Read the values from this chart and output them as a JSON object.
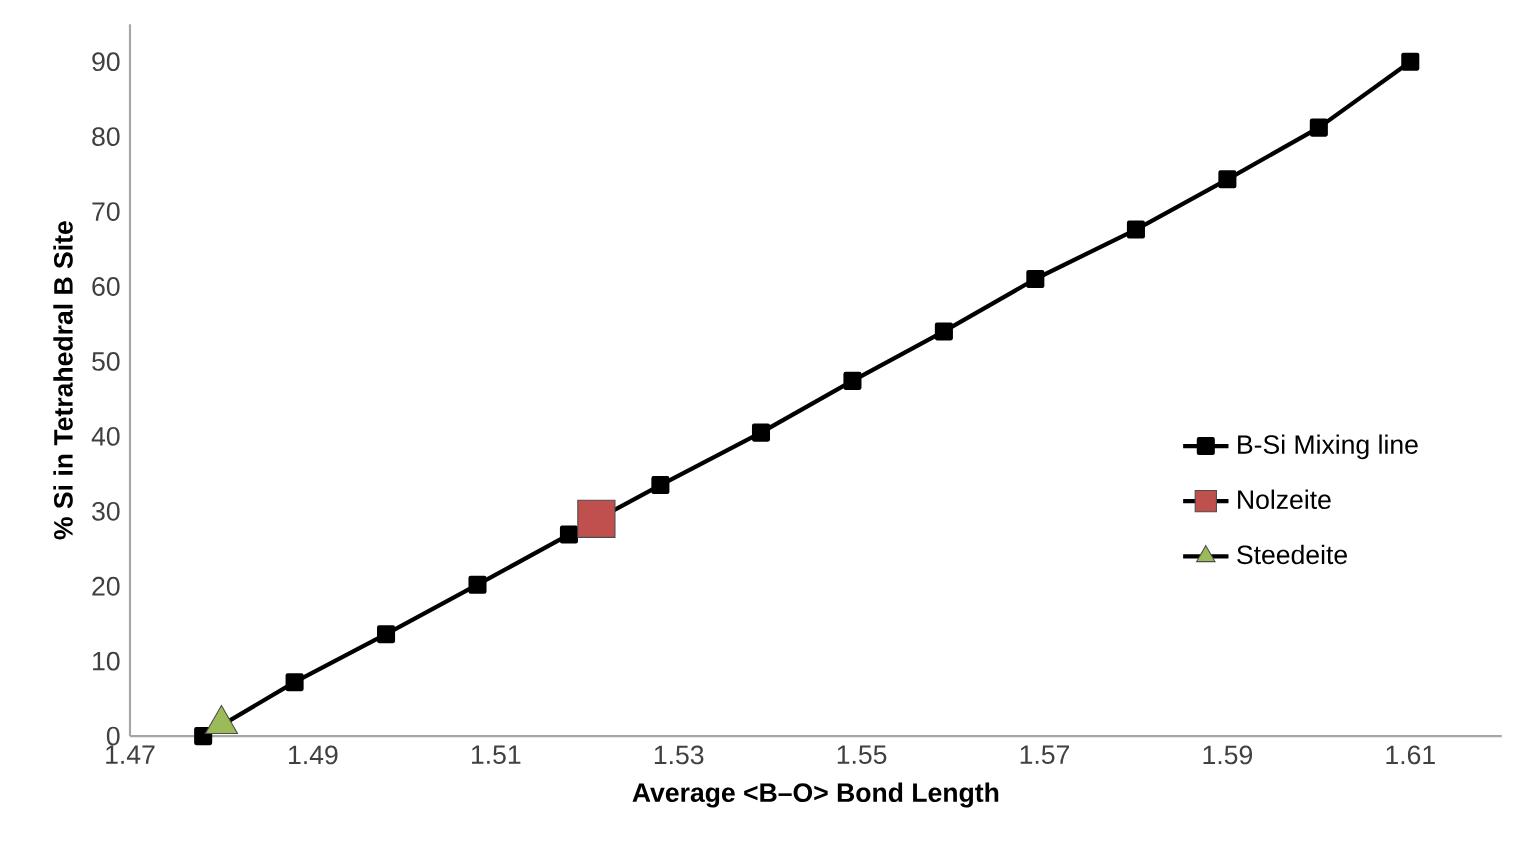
{
  "chart_data": {
    "type": "line",
    "xlabel": "Average <B–O> Bond Length",
    "ylabel": "% Si in Tetrahedral B Site",
    "xlim": [
      1.47,
      1.62
    ],
    "xticks": [
      1.47,
      1.49,
      1.51,
      1.53,
      1.55,
      1.57,
      1.59,
      1.61
    ],
    "ylim": [
      0,
      95
    ],
    "yticks": [
      0,
      10,
      20,
      30,
      40,
      50,
      60,
      70,
      80,
      90
    ],
    "legend": "right",
    "grid": false,
    "series": [
      {
        "name": "B-Si Mixing line",
        "marker": "square",
        "color": "#000000",
        "x": [
          1.478,
          1.488,
          1.498,
          1.508,
          1.518,
          1.528,
          1.539,
          1.549,
          1.559,
          1.569,
          1.58,
          1.59,
          1.6,
          1.61
        ],
        "values": [
          0,
          7.2,
          13.6,
          20.2,
          26.9,
          33.5,
          40.5,
          47.4,
          54,
          61,
          67.6,
          74.3,
          81.2,
          90
        ]
      },
      {
        "name": "Nolzeite",
        "type": "scatter",
        "marker": "square",
        "color": "#c0504d",
        "x": [
          1.521
        ],
        "values": [
          29
        ]
      },
      {
        "name": "Steedeite",
        "type": "scatter",
        "marker": "triangle",
        "color": "#9bbb59",
        "x": [
          1.48
        ],
        "values": [
          1.6
        ]
      }
    ]
  }
}
